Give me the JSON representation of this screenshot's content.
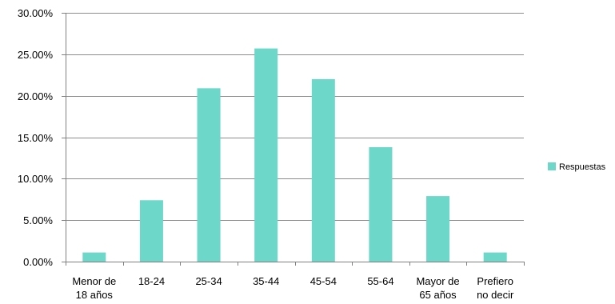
{
  "chart_data": {
    "type": "bar",
    "categories": [
      [
        "Menor de",
        "18 años"
      ],
      [
        "18-24"
      ],
      [
        "25-34"
      ],
      [
        "35-44"
      ],
      [
        "45-54"
      ],
      [
        "55-64"
      ],
      [
        "Mayor de",
        "65 años"
      ],
      [
        "Prefiero",
        "no decir"
      ]
    ],
    "series": [
      {
        "name": "Respuestas",
        "values": [
          0.011,
          0.074,
          0.209,
          0.257,
          0.22,
          0.138,
          0.079,
          0.011
        ]
      }
    ],
    "y_ticks": [
      "0.00%",
      "5.00%",
      "10.00%",
      "15.00%",
      "20.00%",
      "25.00%",
      "30.00%"
    ],
    "ylim": [
      0,
      0.3
    ],
    "grid": true,
    "legend": "right",
    "colors": {
      "bar": "#6dd7c9",
      "grid": "#8c8c8c",
      "axis": "#808080"
    }
  }
}
